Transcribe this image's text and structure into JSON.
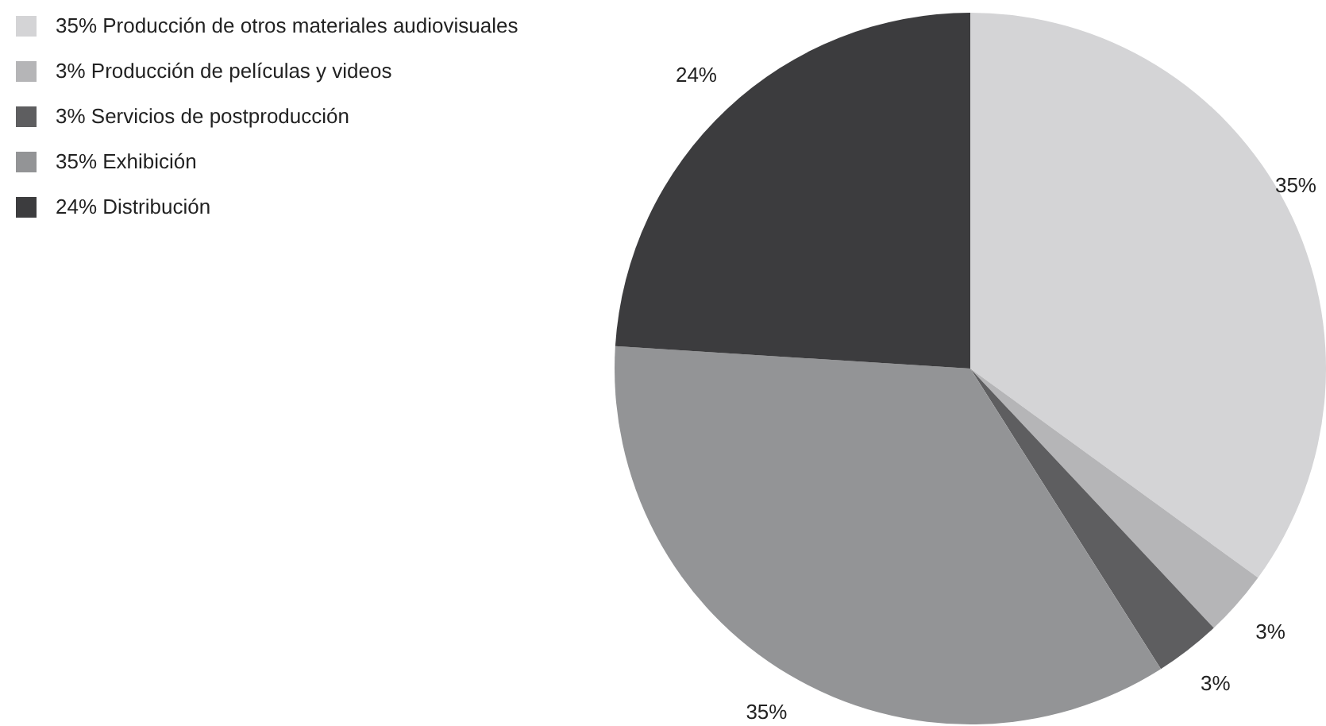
{
  "chart_data": {
    "type": "pie",
    "categories": [
      "35% Producción de otros materiales audiovisuales",
      "3% Producción de películas y videos",
      "3% Servicios de postproducción",
      "35% Exhibición",
      "24% Distribución"
    ],
    "values": [
      35,
      3,
      3,
      35,
      24
    ],
    "value_labels": [
      "35%",
      "3%",
      "3%",
      "35%",
      "24%"
    ],
    "colors": [
      "#d4d4d6",
      "#b5b5b7",
      "#5e5e60",
      "#939496",
      "#3c3c3e"
    ],
    "legend": "top left"
  }
}
